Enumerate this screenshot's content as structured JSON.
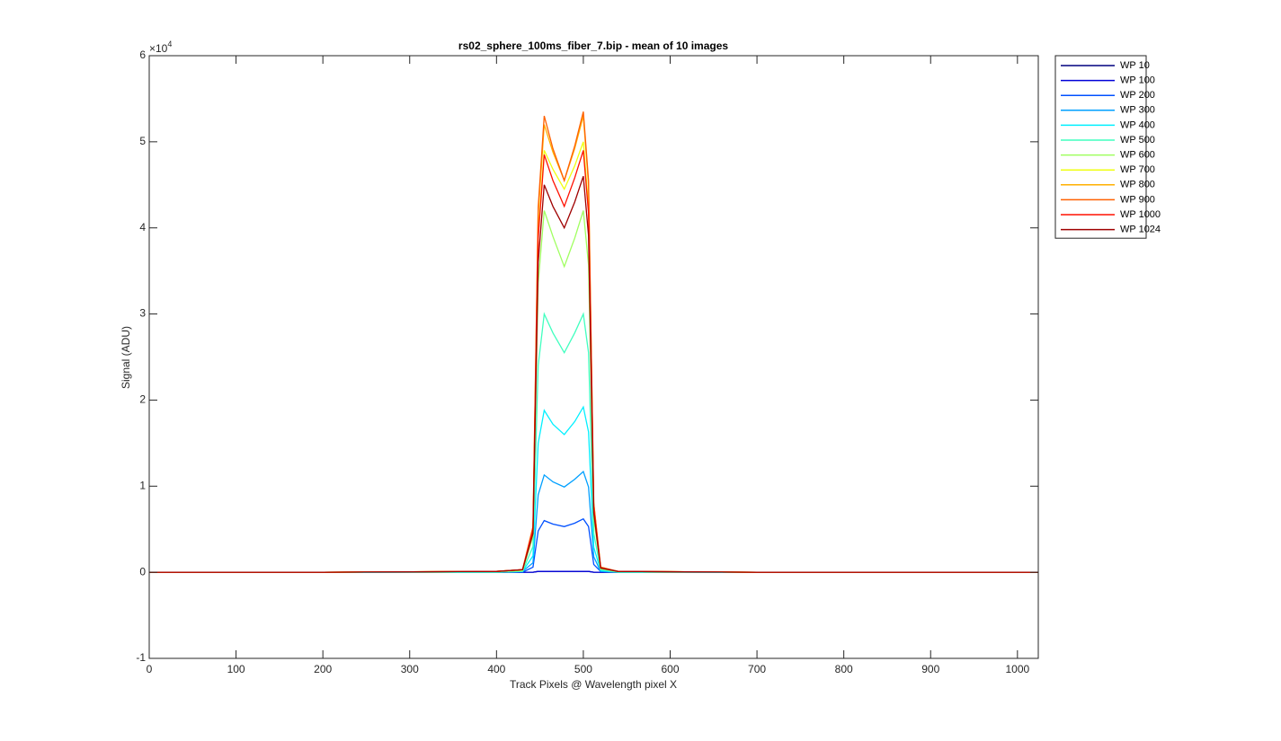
{
  "chart_data": {
    "type": "line",
    "title": "rs02_sphere_100ms_fiber_7.bip - mean of 10 images",
    "x_label": "Track Pixels @ Wavelength pixel X",
    "y_label": "Signal (ADU)",
    "y_multiplier_base": "×10",
    "y_multiplier_exponent": "4",
    "x": [
      0,
      200,
      400,
      430,
      442,
      448,
      455,
      465,
      478,
      490,
      500,
      506,
      512,
      520,
      540,
      700,
      1024
    ],
    "series": [
      {
        "name": "WP 10",
        "color": "#00007f",
        "values": [
          0,
          0,
          0,
          0,
          0,
          0.01,
          0.01,
          0.01,
          0.01,
          0.01,
          0.01,
          0.01,
          0,
          0,
          0,
          0,
          0
        ]
      },
      {
        "name": "WP 100",
        "color": "#0000d9",
        "values": [
          0,
          0,
          0,
          0,
          0,
          0.01,
          0.01,
          0.01,
          0.01,
          0.01,
          0.01,
          0.01,
          0,
          0,
          0,
          0,
          0
        ]
      },
      {
        "name": "WP 200",
        "color": "#0050ff",
        "values": [
          0,
          0,
          0,
          0,
          0.06,
          0.48,
          0.6,
          0.56,
          0.53,
          0.57,
          0.62,
          0.53,
          0.09,
          0.01,
          0,
          0,
          0
        ]
      },
      {
        "name": "WP 300",
        "color": "#00a0ff",
        "values": [
          0,
          0,
          0,
          0.01,
          0.11,
          0.9,
          1.13,
          1.05,
          0.99,
          1.08,
          1.17,
          0.99,
          0.18,
          0.01,
          0,
          0,
          0
        ]
      },
      {
        "name": "WP 400",
        "color": "#00f0ff",
        "values": [
          0,
          0,
          0,
          0.01,
          0.19,
          1.5,
          1.88,
          1.72,
          1.6,
          1.75,
          1.92,
          1.63,
          0.29,
          0.02,
          0,
          0,
          0
        ]
      },
      {
        "name": "WP 500",
        "color": "#40ffbf",
        "values": [
          0,
          0,
          0,
          0.01,
          0.3,
          2.4,
          3.0,
          2.78,
          2.55,
          2.78,
          3.0,
          2.55,
          0.45,
          0.03,
          0,
          0,
          0
        ]
      },
      {
        "name": "WP 600",
        "color": "#a0ff60",
        "values": [
          0,
          0,
          0.01,
          0.02,
          0.42,
          3.36,
          4.2,
          3.9,
          3.55,
          3.88,
          4.2,
          3.57,
          0.63,
          0.04,
          0.01,
          0,
          0
        ]
      },
      {
        "name": "WP 700",
        "color": "#f0ff10",
        "values": [
          0,
          0,
          0.01,
          0.03,
          0.49,
          3.92,
          4.9,
          4.68,
          4.45,
          4.72,
          5.0,
          4.25,
          0.75,
          0.05,
          0.01,
          0,
          0
        ]
      },
      {
        "name": "WP 800",
        "color": "#ffb000",
        "values": [
          0,
          0,
          0.01,
          0.03,
          0.52,
          4.16,
          5.2,
          4.88,
          4.55,
          4.92,
          5.3,
          4.5,
          0.8,
          0.06,
          0.01,
          0,
          0
        ]
      },
      {
        "name": "WP 900",
        "color": "#ff6000",
        "values": [
          0,
          0,
          0.01,
          0.03,
          0.53,
          4.24,
          5.3,
          4.92,
          4.55,
          4.95,
          5.35,
          4.55,
          0.8,
          0.06,
          0.01,
          0,
          0
        ]
      },
      {
        "name": "WP 1000",
        "color": "#ff1000",
        "values": [
          0,
          0,
          0.01,
          0.03,
          0.49,
          3.88,
          4.85,
          4.55,
          4.25,
          4.58,
          4.9,
          4.17,
          0.74,
          0.05,
          0.01,
          0,
          0
        ]
      },
      {
        "name": "WP 1024",
        "color": "#9f0000",
        "values": [
          0,
          0,
          0.01,
          0.03,
          0.45,
          3.6,
          4.5,
          4.25,
          4.0,
          4.3,
          4.6,
          3.91,
          0.69,
          0.05,
          0.01,
          0,
          0
        ]
      }
    ],
    "xlim": [
      0,
      1024
    ],
    "xticks": [
      0,
      100,
      200,
      300,
      400,
      500,
      600,
      700,
      800,
      900,
      1000
    ],
    "ylim": [
      -1,
      6
    ],
    "yticks": [
      -1,
      0,
      1,
      2,
      3,
      4,
      5,
      6
    ],
    "grid": false,
    "legend": "outside-right"
  }
}
